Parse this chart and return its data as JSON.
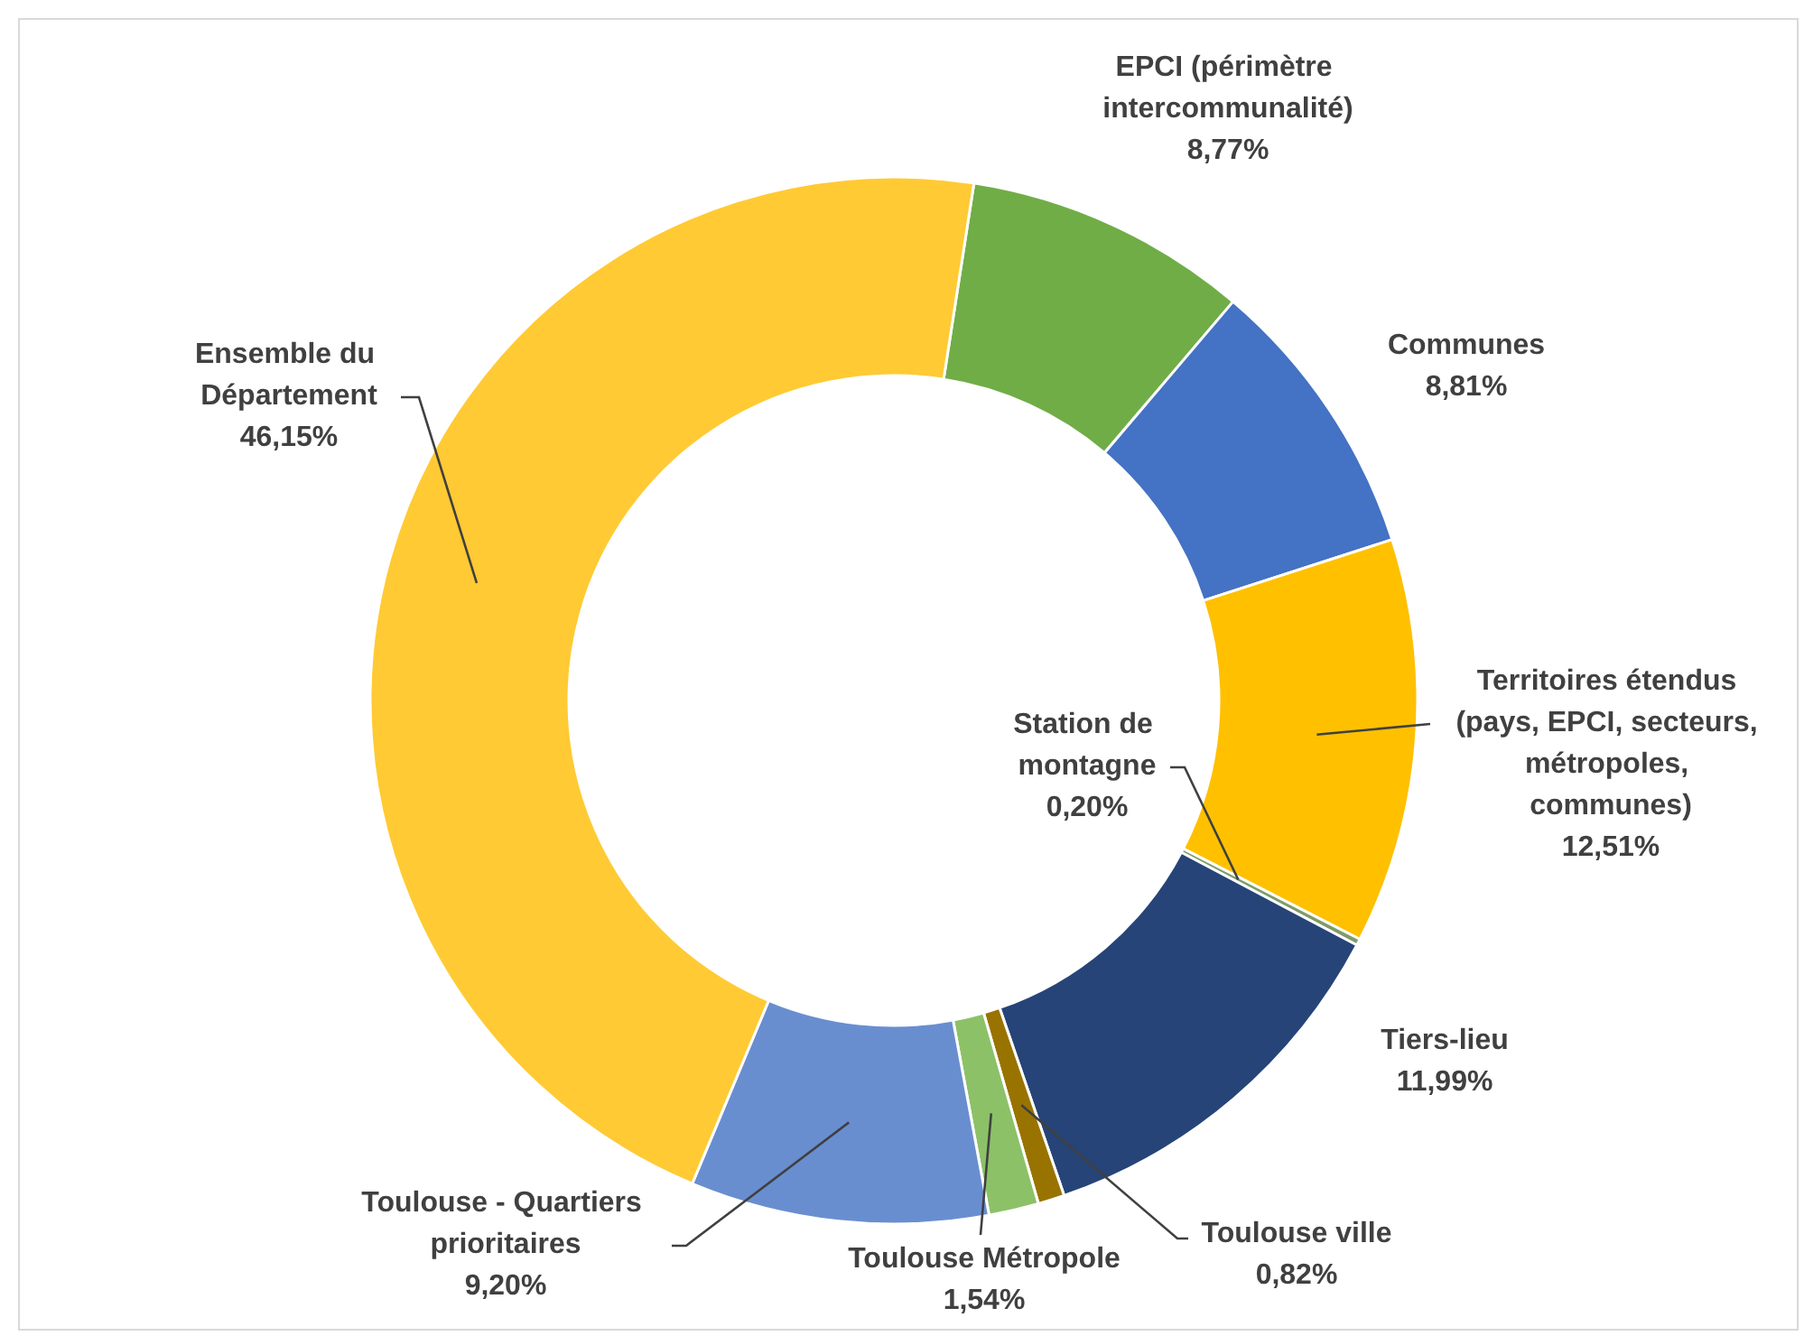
{
  "chart_data": {
    "type": "donut",
    "categories": [
      "EPCI (périmètre intercommunalité)",
      "Communes",
      "Territoires étendus (pays, EPCI, secteurs, métropoles, communes)",
      "Station de montagne",
      "Tiers-lieu",
      "Toulouse ville",
      "Toulouse Métropole",
      "Toulouse - Quartiers prioritaires",
      "Ensemble du Département"
    ],
    "values": [
      8.77,
      8.81,
      12.51,
      0.2,
      11.99,
      0.82,
      1.54,
      9.2,
      46.15
    ],
    "colors": [
      "#70ad47",
      "#4472c4",
      "#ffc000",
      "#7e9c6a",
      "#264478",
      "#997300",
      "#8cc168",
      "#698ed0",
      "#ffca33"
    ],
    "value_labels": [
      "8,77%",
      "8,81%",
      "12,51%",
      "0,20%",
      "11,99%",
      "0,82%",
      "1,54%",
      "9,20%",
      "46,15%"
    ]
  }
}
